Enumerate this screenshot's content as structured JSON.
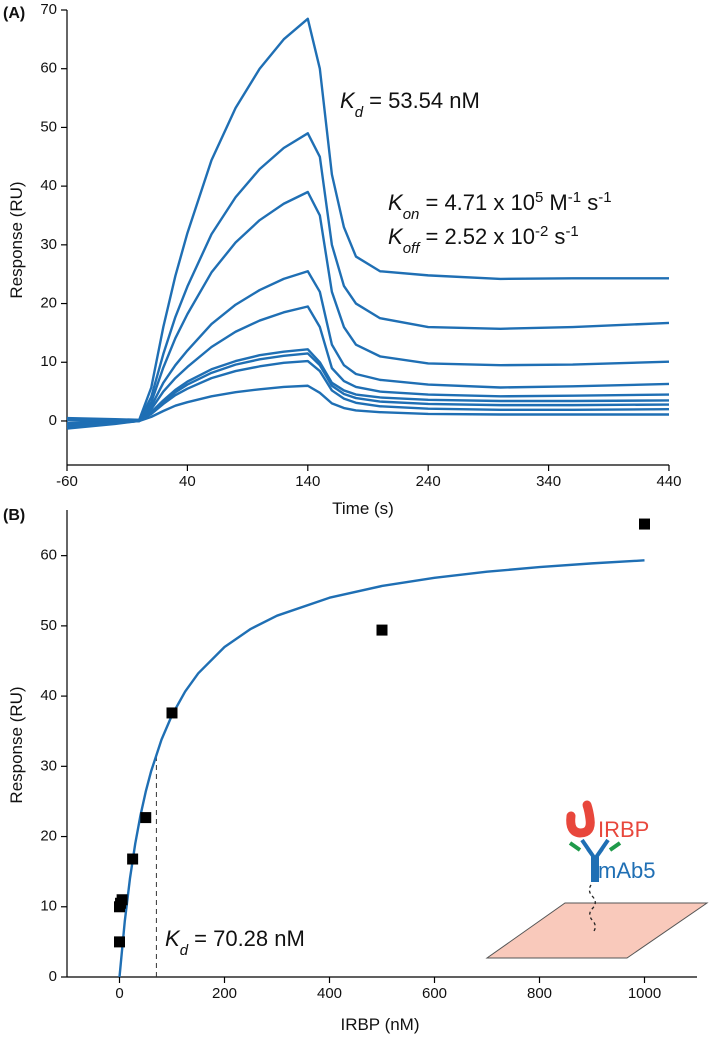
{
  "chart_data": [
    {
      "type": "line",
      "panel_label": "(A)",
      "x_label": "Time (s)",
      "y_label": "Response (RU)",
      "color": "#1f6fb4",
      "x": [
        -60,
        -20,
        0,
        10,
        20,
        30,
        40,
        60,
        80,
        100,
        120,
        140,
        150,
        160,
        170,
        180,
        200,
        240,
        300,
        360,
        440
      ],
      "series": [
        {
          "values": [
            0.5,
            0.3,
            0.2,
            5.7,
            16,
            24.7,
            32,
            44.4,
            53.3,
            60,
            65,
            68.5,
            60,
            42,
            33,
            28,
            25.5,
            24.8,
            24.2,
            24.3,
            24.3
          ]
        },
        {
          "values": [
            -0.3,
            0,
            0,
            4.1,
            11.4,
            17.7,
            22.9,
            31.8,
            38.1,
            42.9,
            46.5,
            49,
            45,
            30,
            23,
            20,
            17.5,
            16,
            15.7,
            16,
            16.7
          ]
        },
        {
          "values": [
            -0.8,
            -0.3,
            0,
            3.2,
            9.1,
            14.1,
            18.2,
            25.3,
            30.4,
            34.2,
            37,
            39,
            35,
            22,
            16,
            13,
            11,
            9.8,
            9.5,
            9.6,
            10.1
          ]
        },
        {
          "values": [
            -1.3,
            -0.5,
            0,
            2.5,
            6.5,
            9.5,
            12,
            16.5,
            19.8,
            22.3,
            24.2,
            25.5,
            22,
            13,
            9.5,
            8,
            7,
            6.2,
            5.7,
            5.9,
            6.3
          ]
        },
        {
          "values": [
            -0.5,
            -0.2,
            0,
            2,
            5,
            7.3,
            9.2,
            12.6,
            15.2,
            17.1,
            18.5,
            19.5,
            16,
            9,
            6.8,
            5.8,
            5,
            4.5,
            4.2,
            4.3,
            4.5
          ]
        },
        {
          "values": [
            0.3,
            0.1,
            0,
            1.5,
            3.5,
            5.3,
            6.7,
            8.8,
            10.2,
            11.2,
            11.8,
            12.2,
            10,
            6.5,
            5.2,
            4.5,
            4,
            3.6,
            3.4,
            3.4,
            3.5
          ]
        },
        {
          "values": [
            -0.8,
            -0.3,
            0,
            1.3,
            3.2,
            4.9,
            6.2,
            8.2,
            9.6,
            10.5,
            11.1,
            11.5,
            9.5,
            6,
            4.6,
            3.9,
            3.3,
            2.9,
            2.7,
            2.7,
            2.8
          ]
        },
        {
          "values": [
            0.2,
            0.1,
            0,
            1.2,
            2.9,
            4.4,
            5.5,
            7.3,
            8.5,
            9.3,
            9.9,
            10.2,
            8.5,
            5.2,
            3.8,
            3.1,
            2.5,
            2.1,
            1.9,
            1.9,
            2
          ]
        },
        {
          "values": [
            -1,
            -0.4,
            0,
            0.7,
            1.7,
            2.6,
            3.2,
            4.2,
            4.9,
            5.4,
            5.8,
            6,
            4.8,
            3,
            2.2,
            1.8,
            1.5,
            1.2,
            1.1,
            1.1,
            1.1
          ]
        }
      ],
      "xlim": [
        -60,
        440
      ],
      "xticks": [
        -60,
        40,
        140,
        240,
        340,
        440
      ],
      "ylim": [
        -7.5,
        70
      ],
      "yticks": [
        0,
        10,
        20,
        30,
        40,
        50,
        60,
        70
      ],
      "annotations": [
        {
          "runs": [
            {
              "text": "K",
              "style": "italic"
            },
            {
              "text": "d",
              "style": "italic-sub"
            },
            {
              "text": " = 53.54 nM"
            }
          ]
        },
        {
          "runs": [
            {
              "text": "K",
              "style": "italic"
            },
            {
              "text": "on",
              "style": "italic-sub"
            },
            {
              "text": " = 4.71 x 10"
            },
            {
              "text": "5",
              "style": "sup"
            },
            {
              "text": " M"
            },
            {
              "text": "-1",
              "style": "sup"
            },
            {
              "text": " s"
            },
            {
              "text": "-1",
              "style": "sup"
            }
          ]
        },
        {
          "runs": [
            {
              "text": "K",
              "style": "italic"
            },
            {
              "text": "off",
              "style": "italic-sub"
            },
            {
              "text": " = 2.52 x 10"
            },
            {
              "text": "-2",
              "style": "sup"
            },
            {
              "text": " s"
            },
            {
              "text": "-1",
              "style": "sup"
            }
          ]
        }
      ]
    },
    {
      "type": "scatter",
      "panel_label": "(B)",
      "x_label": "IRBP (nM)",
      "y_label": "Response (RU)",
      "color": "#1f6fb4",
      "point_color": "#000000",
      "x": [
        0,
        0,
        2,
        5,
        25,
        50,
        100,
        500,
        1000
      ],
      "values": [
        5,
        10,
        10.5,
        11,
        16.8,
        22.7,
        37.6,
        49.4,
        64.5
      ],
      "fit": {
        "x": [
          0,
          10,
          20,
          30,
          40,
          50,
          60,
          80,
          100,
          125,
          150,
          200,
          250,
          300,
          400,
          500,
          600,
          700,
          800,
          900,
          1000
        ],
        "values": [
          0,
          7.91,
          14.07,
          19.0,
          23.03,
          26.4,
          29.24,
          33.8,
          37.29,
          40.65,
          43.24,
          46.99,
          49.57,
          51.45,
          54.01,
          55.68,
          56.84,
          57.71,
          58.37,
          58.9,
          59.33
        ]
      },
      "marker_line": {
        "x": 70.28,
        "y": 31.7
      },
      "xlim": [
        -100,
        1100
      ],
      "xticks": [
        0,
        200,
        400,
        600,
        800,
        1000
      ],
      "ylim": [
        0,
        66.5
      ],
      "yticks": [
        0,
        10,
        20,
        30,
        40,
        50,
        60
      ],
      "annotations": [
        {
          "runs": [
            {
              "text": "K",
              "style": "italic"
            },
            {
              "text": "d",
              "style": "italic-sub"
            },
            {
              "text": " = 70.28 nM"
            }
          ]
        },
        {
          "runs": [
            {
              "text": "IRBP"
            }
          ],
          "color": "#e8473c"
        },
        {
          "runs": [
            {
              "text": "mAb5"
            }
          ],
          "color": "#1f6fb4"
        }
      ]
    }
  ]
}
